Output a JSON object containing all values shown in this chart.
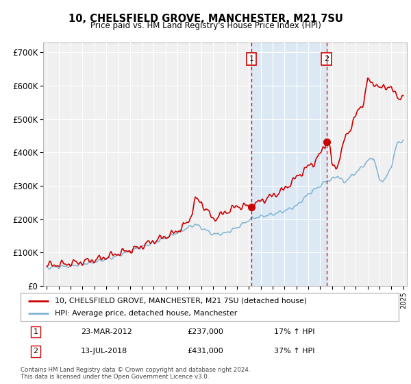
{
  "title": "10, CHELSFIELD GROVE, MANCHESTER, M21 7SU",
  "subtitle": "Price paid vs. HM Land Registry's House Price Index (HPI)",
  "ylabel_ticks": [
    "£0",
    "£100K",
    "£200K",
    "£300K",
    "£400K",
    "£500K",
    "£600K",
    "£700K"
  ],
  "ytick_values": [
    0,
    100000,
    200000,
    300000,
    400000,
    500000,
    600000,
    700000
  ],
  "ylim": [
    0,
    730000
  ],
  "xlim_min": 1994.7,
  "xlim_max": 2025.3,
  "legend_line1": "10, CHELSFIELD GROVE, MANCHESTER, M21 7SU (detached house)",
  "legend_line2": "HPI: Average price, detached house, Manchester",
  "annotation1_label": "1",
  "annotation1_date": "23-MAR-2012",
  "annotation1_price": "£237,000",
  "annotation1_hpi": "17% ↑ HPI",
  "annotation2_label": "2",
  "annotation2_date": "13-JUL-2018",
  "annotation2_price": "£431,000",
  "annotation2_hpi": "37% ↑ HPI",
  "footnote": "Contains HM Land Registry data © Crown copyright and database right 2024.\nThis data is licensed under the Open Government Licence v3.0.",
  "red_color": "#cc0000",
  "blue_color": "#7fb3d3",
  "shaded_color": "#dce9f5",
  "vline_color": "#cc0000",
  "background_color": "#f0f0f0",
  "grid_color": "#ffffff",
  "trans1_x": 2012.22,
  "trans1_y": 237000,
  "trans2_x": 2018.54,
  "trans2_y": 431000
}
